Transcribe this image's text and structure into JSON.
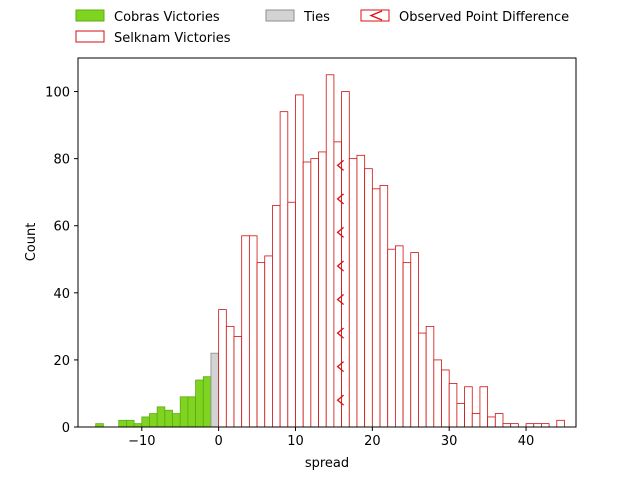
{
  "chart_data": {
    "type": "bar",
    "title": "",
    "xlabel": "spread",
    "ylabel": "Count",
    "xlim": [
      -18.3,
      46.5
    ],
    "ylim": [
      0,
      110
    ],
    "xticks": [
      -10,
      0,
      10,
      20,
      30,
      40
    ],
    "yticks": [
      0,
      20,
      40,
      60,
      80,
      100
    ],
    "xtick_labels": [
      "−10",
      "0",
      "10",
      "20",
      "30",
      "40"
    ],
    "ytick_labels": [
      "0",
      "20",
      "40",
      "60",
      "80",
      "100"
    ],
    "bin_width": 1,
    "grid": false,
    "legend": {
      "placement": "top (above plot), 3 columns",
      "entries": [
        {
          "label": "Cobras Victories",
          "key": "cobras"
        },
        {
          "label": "Selknam Victories",
          "key": "selknam"
        },
        {
          "label": "Ties",
          "key": "ties"
        },
        {
          "label": "Observed Point Difference",
          "key": "observed"
        }
      ]
    },
    "series": [
      {
        "name": "Cobras Victories",
        "key": "cobras",
        "color": "#7fd41f",
        "edge": "#5fa818",
        "bin_starts": [
          -16,
          -13,
          -12,
          -11,
          -10,
          -9,
          -8,
          -7,
          -6,
          -5,
          -4,
          -3,
          -2,
          -1
        ],
        "values": [
          1,
          2,
          2,
          1,
          3,
          4,
          6,
          5,
          4,
          9,
          9,
          14,
          15,
          0
        ]
      },
      {
        "name": "Ties",
        "key": "ties",
        "color": "#d3d3d3",
        "edge": "#8c8c8c",
        "bin_starts": [
          -1
        ],
        "values": [
          22
        ]
      },
      {
        "name": "Selknam Victories",
        "key": "selknam",
        "color": "#ffffff",
        "edge": "#cc1111",
        "bin_starts": [
          0,
          1,
          2,
          3,
          4,
          5,
          6,
          7,
          8,
          9,
          10,
          11,
          12,
          13,
          14,
          15,
          16,
          17,
          18,
          19,
          20,
          21,
          22,
          23,
          24,
          25,
          26,
          27,
          28,
          29,
          30,
          31,
          32,
          33,
          34,
          35,
          36,
          37,
          38,
          39,
          40,
          41,
          42,
          43,
          44
        ],
        "values": [
          35,
          30,
          27,
          57,
          57,
          49,
          51,
          66,
          94,
          67,
          99,
          79,
          80,
          82,
          105,
          85,
          100,
          80,
          81,
          77,
          71,
          72,
          53,
          54,
          49,
          52,
          28,
          30,
          20,
          17,
          13,
          7,
          12,
          4,
          12,
          3,
          4,
          1,
          1,
          0,
          1,
          1,
          1,
          0,
          2
        ]
      }
    ],
    "observed_point_difference": {
      "name": "Observed Point Difference",
      "key": "observed",
      "x": 16,
      "marker": "<",
      "color": "#dd1111",
      "marker_y_values": [
        8,
        18,
        28,
        38,
        48,
        58,
        68,
        78
      ]
    }
  }
}
